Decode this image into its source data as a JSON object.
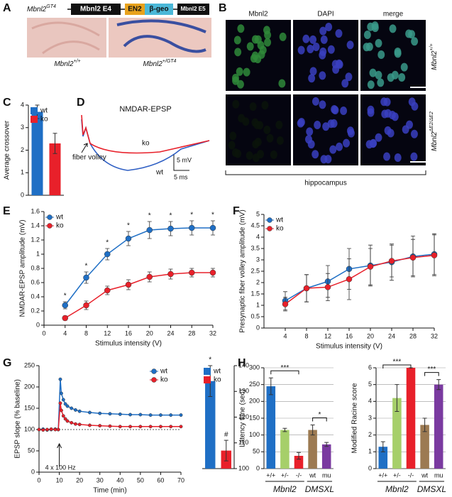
{
  "panels": {
    "A": {
      "letter": "A",
      "allele": "Mbnl2",
      "allele_sup": "GT4",
      "exons": [
        "Mbnl2 E4",
        "EN2",
        "β-geo",
        "Mbnl2 E5"
      ],
      "images": [
        {
          "label": "Mbnl2",
          "sup": "+/+"
        },
        {
          "label": "Mbnl2",
          "sup": "+/GT4"
        }
      ]
    },
    "B": {
      "letter": "B",
      "columns": [
        "Mbnl2",
        "DAPI",
        "merge"
      ],
      "rows": [
        {
          "label": "Mbnl2",
          "sup": "+/+"
        },
        {
          "label": "Mbnl2",
          "sup": "ΔE2/ΔE2"
        }
      ],
      "region": "hippocampus"
    }
  },
  "chart_data": [
    {
      "type": "bar",
      "panel": "C",
      "ylabel": "Average crossover",
      "categories": [
        "wt",
        "ko"
      ],
      "values": [
        3.7,
        2.3
      ],
      "errors": [
        0.3,
        0.45
      ],
      "colors": [
        "#1f6fc5",
        "#e8202a"
      ],
      "ylim": [
        0,
        4
      ],
      "yticks": [
        0,
        1,
        2,
        3,
        4
      ],
      "legend": "top-left"
    },
    {
      "type": "trace",
      "panel": "D",
      "title": "NMDAR-EPSP",
      "series": [
        {
          "name": "wt",
          "color": "#2f5fc4"
        },
        {
          "name": "ko",
          "color": "#e8202a"
        }
      ],
      "annotation": "fiber volley",
      "scalebar": {
        "y": "5 mV",
        "x": "5 ms"
      }
    },
    {
      "type": "line",
      "panel": "E",
      "xlabel": "Stimulus intensity (V)",
      "ylabel": "NMDAR-EPSP amplitude (mV)",
      "x": [
        4,
        8,
        12,
        16,
        20,
        24,
        28,
        32
      ],
      "series": [
        {
          "name": "wt",
          "color": "#1f6fc5",
          "values": [
            0.28,
            0.67,
            1.0,
            1.22,
            1.34,
            1.36,
            1.37,
            1.37
          ],
          "errors": [
            0.05,
            0.08,
            0.08,
            0.1,
            0.12,
            0.1,
            0.1,
            0.1
          ]
        },
        {
          "name": "ko",
          "color": "#e8202a",
          "values": [
            0.1,
            0.28,
            0.49,
            0.57,
            0.68,
            0.72,
            0.74,
            0.74
          ],
          "errors": [
            0.03,
            0.06,
            0.06,
            0.07,
            0.07,
            0.07,
            0.06,
            0.06
          ]
        }
      ],
      "significance": [
        "*",
        "*",
        "*",
        "*",
        "*",
        "*",
        "*",
        "*"
      ],
      "xlim": [
        0,
        32
      ],
      "xticks": [
        0,
        4,
        8,
        12,
        16,
        20,
        24,
        28,
        32
      ],
      "ylim": [
        0,
        1.6
      ],
      "yticks": [
        0,
        0.2,
        0.4,
        0.6,
        0.8,
        1,
        1.2,
        1.4,
        1.6
      ],
      "legend": "top-left"
    },
    {
      "type": "line",
      "panel": "F",
      "xlabel": "Stimulus intensity (V)",
      "ylabel": "Presynaptic fiber volley amplitude (mV)",
      "x": [
        4,
        8,
        12,
        16,
        20,
        24,
        28,
        32
      ],
      "series": [
        {
          "name": "wt",
          "color": "#1f6fc5",
          "values": [
            1.2,
            1.75,
            2.05,
            2.6,
            2.75,
            2.9,
            3.15,
            3.25
          ],
          "errors": [
            0.4,
            0.6,
            0.7,
            0.9,
            0.9,
            0.8,
            0.9,
            0.9
          ]
        },
        {
          "name": "ko",
          "color": "#e8202a",
          "values": [
            1.05,
            1.75,
            1.8,
            2.15,
            2.7,
            2.95,
            3.1,
            3.2
          ],
          "errors": [
            0.3,
            0.6,
            0.6,
            0.9,
            0.8,
            0.7,
            0.8,
            0.9
          ]
        }
      ],
      "xlim": [
        0,
        32
      ],
      "xticks": [
        4,
        8,
        12,
        16,
        20,
        24,
        28,
        32
      ],
      "ylim": [
        0,
        5
      ],
      "yticks": [
        0,
        0.5,
        1,
        1.5,
        2,
        2.5,
        3,
        3.5,
        4,
        4.5,
        5
      ],
      "legend": "top-left"
    },
    {
      "type": "line",
      "panel": "G",
      "xlabel": "Time (min)",
      "ylabel": "EPSP slope (% baseline)",
      "x": [
        0,
        2,
        4,
        6,
        8,
        9.5,
        10.5,
        11,
        12,
        13,
        14,
        16,
        18,
        20,
        25,
        30,
        35,
        40,
        45,
        50,
        55,
        60,
        65,
        70
      ],
      "series": [
        {
          "name": "wt",
          "color": "#1f6fc5",
          "values": [
            100,
            101,
            99,
            100,
            101,
            100,
            218,
            185,
            170,
            160,
            155,
            150,
            146,
            143,
            140,
            138,
            137,
            136,
            135,
            135,
            134,
            134,
            134,
            134
          ]
        },
        {
          "name": "ko",
          "color": "#e8202a",
          "values": [
            100,
            99,
            100,
            101,
            100,
            100,
            162,
            145,
            132,
            125,
            120,
            116,
            113,
            112,
            110,
            109,
            108,
            107,
            107,
            107,
            107,
            107,
            107,
            107
          ]
        }
      ],
      "reference": 100,
      "stimulus": {
        "label": "4 x 100 Hz",
        "time": 10
      },
      "xlim": [
        0,
        70
      ],
      "xticks": [
        0,
        10,
        20,
        30,
        40,
        50,
        60,
        70
      ],
      "ylim": [
        0,
        250
      ],
      "yticks": [
        0,
        50,
        100,
        150,
        200,
        250
      ],
      "legend": "top-right"
    },
    {
      "type": "bar",
      "categories": [
        "wt",
        "ko"
      ],
      "values": [
        134,
        107
      ],
      "errors": [
        6,
        4
      ],
      "labels": [
        "*",
        "#"
      ],
      "colors": [
        "#1f6fc5",
        "#e8202a"
      ],
      "ylim": [
        100,
        140
      ],
      "yticks": [
        100,
        110,
        120,
        130,
        140
      ],
      "yaxis": "right",
      "legend": "top-right"
    },
    {
      "type": "bar",
      "panel": "H",
      "ylabel": "Latency time (sec)",
      "categories": [
        "+/+",
        "+/-",
        "-/-",
        "wt",
        "mu"
      ],
      "values": [
        245,
        115,
        38,
        115,
        72
      ],
      "errors": [
        25,
        5,
        10,
        15,
        6
      ],
      "colors": [
        "#1f6fc5",
        "#a6cf6a",
        "#e8202a",
        "#9c7a52",
        "#7a3aa0"
      ],
      "groups": [
        {
          "label": "Mbnl2",
          "first": 0,
          "last": 2
        },
        {
          "label": "DMSXL",
          "first": 3,
          "last": 4
        }
      ],
      "brackets": [
        {
          "label": "***",
          "from": 0,
          "to": 2
        },
        {
          "label": "*",
          "from": 3,
          "to": 4
        }
      ],
      "ylim": [
        0,
        300
      ],
      "yticks": [
        0,
        50,
        100,
        150,
        200,
        250,
        300
      ],
      "grid": true
    },
    {
      "type": "bar",
      "ylabel": "Modified Racine score",
      "categories": [
        "+/+",
        "+/-",
        "-/-",
        "wt",
        "mu"
      ],
      "values": [
        1.3,
        4.2,
        6,
        2.6,
        5.0
      ],
      "errors": [
        0.3,
        0.8,
        0,
        0.4,
        0.3
      ],
      "colors": [
        "#1f6fc5",
        "#a6cf6a",
        "#e8202a",
        "#9c7a52",
        "#7a3aa0"
      ],
      "groups": [
        {
          "label": "Mbnl2",
          "first": 0,
          "last": 2
        },
        {
          "label": "DMSXL",
          "first": 3,
          "last": 4
        }
      ],
      "brackets": [
        {
          "label": "***",
          "from": 0,
          "to": 2
        },
        {
          "label": "***",
          "from": 3,
          "to": 4
        }
      ],
      "ylim": [
        0,
        6
      ],
      "yticks": [
        0,
        1,
        2,
        3,
        4,
        5,
        6
      ],
      "grid": true
    }
  ]
}
